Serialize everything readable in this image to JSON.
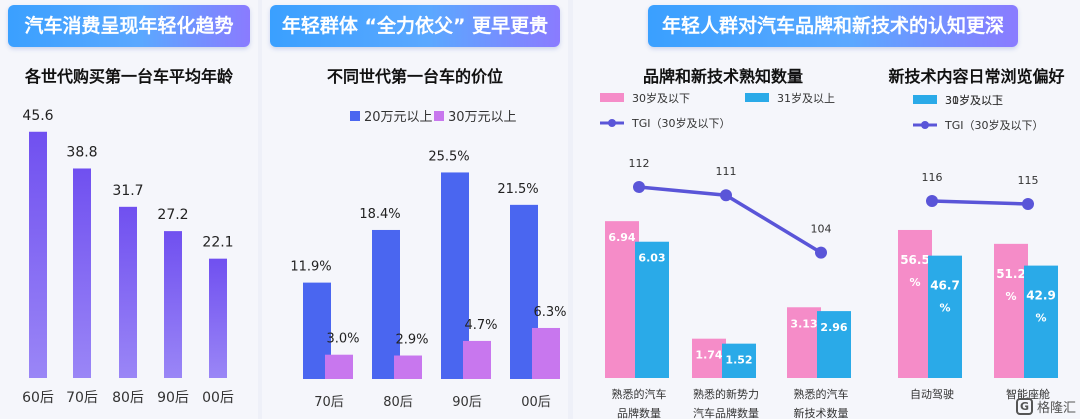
{
  "sections": {
    "s1": "汽车消费呈现年轻化趋势",
    "s2": "年轻群体 “全力依父” 更早更贵",
    "s3": "年轻人群对汽车品牌和新技术的认知更深"
  },
  "watermark": {
    "mark": "G",
    "text": "格隆汇"
  },
  "colors": {
    "purple": "#7b5cf0",
    "blue20": "#4a66f0",
    "lavender30": "#c877ee",
    "pink": "#f58cc8",
    "cyan": "#2aaae8",
    "tgi": "#5a55d8"
  },
  "chart_data": [
    {
      "type": "bar",
      "title": "各世代购买第一台车平均年龄",
      "categories": [
        "60后",
        "70后",
        "80后",
        "90后",
        "00后"
      ],
      "values": [
        45.6,
        38.8,
        31.7,
        27.2,
        22.1
      ],
      "value_labels": [
        "45.6",
        "38.8",
        "31.7",
        "27.2",
        "22.1"
      ]
    },
    {
      "type": "bar",
      "title": "不同世代第一台车的价位",
      "categories": [
        "70后",
        "80后",
        "90后",
        "00后"
      ],
      "series": [
        {
          "name": "20万元以上",
          "values": [
            11.9,
            18.4,
            25.5,
            21.5
          ],
          "labels": [
            "11.9%",
            "18.4%",
            "25.5%",
            "21.5%"
          ]
        },
        {
          "name": "30万元以上",
          "values": [
            3.0,
            2.9,
            4.7,
            6.3
          ],
          "labels": [
            "3.0%",
            "2.9%",
            "4.7%",
            "6.3%"
          ]
        }
      ],
      "legend": "top"
    },
    {
      "type": "bar",
      "title": "品牌和新技术熟知数量",
      "categories": [
        "熟悉的汽车品牌数量",
        "熟悉的新势力汽车品牌数量",
        "熟悉的汽车新技术数量"
      ],
      "category_lines": [
        [
          "熟悉的汽车",
          "品牌数量"
        ],
        [
          "熟悉的新势力",
          "汽车品牌数量"
        ],
        [
          "熟悉的汽车",
          "新技术数量"
        ]
      ],
      "series": [
        {
          "name": "30岁及以下",
          "values": [
            6.94,
            1.74,
            3.13
          ],
          "labels": [
            "6.94",
            "1.74",
            "3.13"
          ]
        },
        {
          "name": "31岁及以上",
          "values": [
            6.03,
            1.52,
            2.96
          ],
          "labels": [
            "6.03",
            "1.52",
            "2.96"
          ]
        }
      ],
      "line": {
        "name": "TGI（30岁及以下）",
        "values": [
          112,
          111,
          104
        ],
        "labels": [
          "112",
          "111",
          "104"
        ]
      },
      "legend": "top-left"
    },
    {
      "type": "bar",
      "title": "新技术内容日常浏览偏好",
      "categories": [
        "自动驾驶",
        "智能座舱"
      ],
      "series": [
        {
          "name": "30岁及以下",
          "values": [
            56.5,
            51.2
          ],
          "labels": [
            "56.5",
            "51.2"
          ],
          "unit": "%"
        },
        {
          "name": "31岁及以上",
          "values": [
            46.7,
            42.9
          ],
          "labels": [
            "46.7",
            "42.9"
          ],
          "unit": "%"
        }
      ],
      "line": {
        "name": "TGI（30岁及以下）",
        "values": [
          116,
          115
        ],
        "labels": [
          "116",
          "115"
        ]
      },
      "legend": "top"
    }
  ]
}
